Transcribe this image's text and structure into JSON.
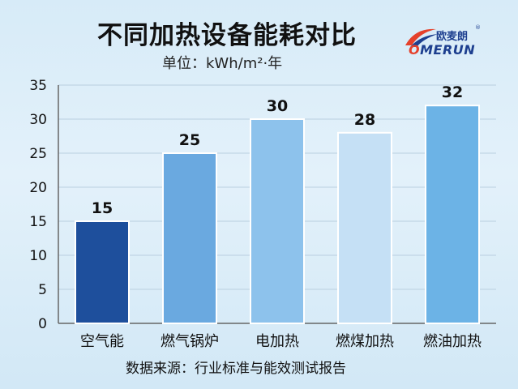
{
  "title": "不同加热设备能耗对比",
  "unit_label": "单位：kWh/m²·年",
  "source": "数据来源：行业标准与能效测试报告",
  "logo": {
    "text_cn": "欧麦朗",
    "text_en_o": "O",
    "text_en_rest": "MERUN",
    "registered": "®"
  },
  "chart_data": {
    "type": "bar",
    "categories": [
      "空气能",
      "燃气锅炉",
      "电加热",
      "燃煤加热",
      "燃油加热"
    ],
    "values": [
      15,
      25,
      30,
      28,
      32
    ],
    "data_labels": [
      "15",
      "25",
      "30",
      "28",
      "32"
    ],
    "ylim": [
      0,
      35
    ],
    "yticks": [
      0,
      5,
      10,
      15,
      20,
      25,
      30,
      35
    ],
    "ytick_labels": [
      "0",
      "5",
      "10",
      "15",
      "20",
      "25",
      "30",
      "35"
    ],
    "grid": true,
    "colors": [
      "#1e4f9c",
      "#6aa9e0",
      "#8dc2ec",
      "#c5e0f5",
      "#6cb3e6"
    ]
  }
}
